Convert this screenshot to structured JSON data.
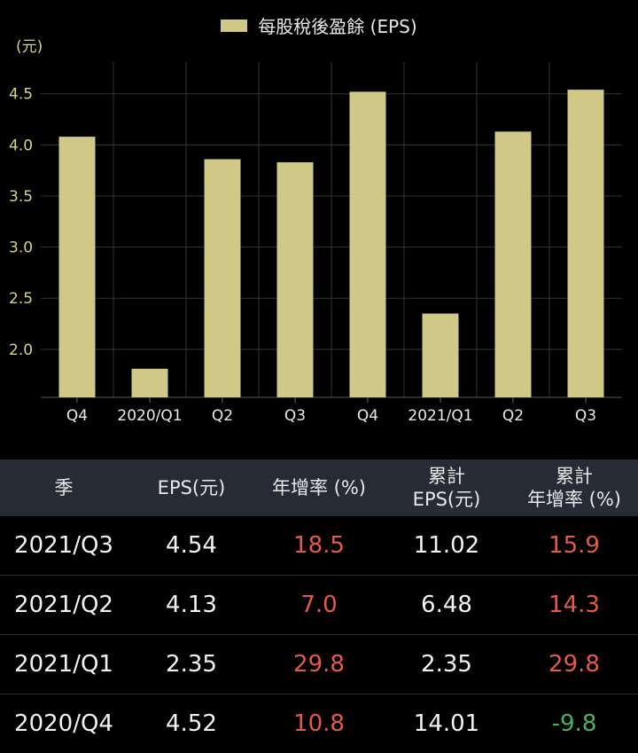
{
  "colors": {
    "bar": "#d0c886",
    "axis_text": "#d8d18a",
    "grid": "#2f3540",
    "up": "#e35a4a",
    "down": "#49b35a",
    "header_bg": "#262b36"
  },
  "chart_data": {
    "type": "bar",
    "legend": "每股稅後盈餘 (EPS)",
    "unit": "(元)",
    "categories": [
      "Q4",
      "2020/Q1",
      "Q2",
      "Q3",
      "Q4",
      "2021/Q1",
      "Q2",
      "Q3"
    ],
    "values": [
      4.08,
      1.81,
      3.86,
      3.83,
      4.52,
      2.35,
      4.13,
      4.54
    ],
    "yticks": [
      2.0,
      2.5,
      3.0,
      3.5,
      4.0,
      4.5
    ],
    "ylim": [
      1.53,
      4.81
    ],
    "grid": true,
    "legend_position": "top-center"
  },
  "table": {
    "headers": [
      [
        "季"
      ],
      [
        "EPS(元)"
      ],
      [
        "年增率 (%)"
      ],
      [
        "累計",
        "EPS(元)"
      ],
      [
        "累計",
        "年增率 (%)"
      ]
    ],
    "rows": [
      {
        "season": "2021/Q3",
        "eps": "4.54",
        "yoy": "18.5",
        "yoy_dir": "up",
        "cum_eps": "11.02",
        "cum_yoy": "15.9",
        "cum_dir": "up"
      },
      {
        "season": "2021/Q2",
        "eps": "4.13",
        "yoy": "7.0",
        "yoy_dir": "up",
        "cum_eps": "6.48",
        "cum_yoy": "14.3",
        "cum_dir": "up"
      },
      {
        "season": "2021/Q1",
        "eps": "2.35",
        "yoy": "29.8",
        "yoy_dir": "up",
        "cum_eps": "2.35",
        "cum_yoy": "29.8",
        "cum_dir": "up"
      },
      {
        "season": "2020/Q4",
        "eps": "4.52",
        "yoy": "10.8",
        "yoy_dir": "up",
        "cum_eps": "14.01",
        "cum_yoy": "-9.8",
        "cum_dir": "down"
      }
    ]
  }
}
